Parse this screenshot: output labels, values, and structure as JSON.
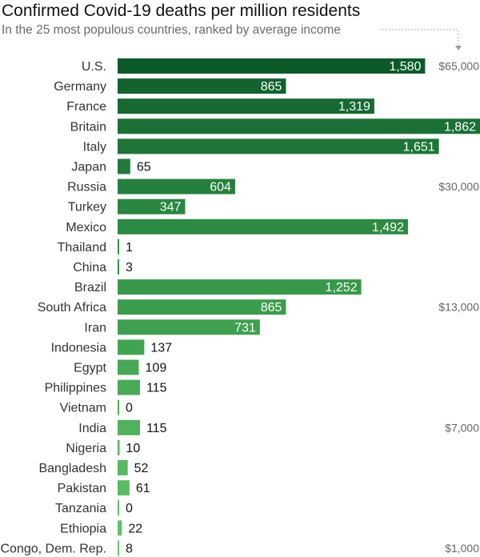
{
  "chart_data": {
    "type": "bar",
    "orientation": "horizontal",
    "title": "Confirmed Covid-19 deaths per million residents",
    "subtitle": "In the 25 most populous countries, ranked by average income",
    "xlim": [
      0,
      1862
    ],
    "grid": false,
    "categories": [
      "U.S.",
      "Germany",
      "France",
      "Britain",
      "Italy",
      "Japan",
      "Russia",
      "Turkey",
      "Mexico",
      "Thailand",
      "China",
      "Brazil",
      "South Africa",
      "Iran",
      "Indonesia",
      "Egypt",
      "Philippines",
      "Vietnam",
      "India",
      "Nigeria",
      "Bangladesh",
      "Pakistan",
      "Tanzania",
      "Ethiopia",
      "Congo, Dem. Rep."
    ],
    "values": [
      1580,
      865,
      1319,
      1862,
      1651,
      65,
      604,
      347,
      1492,
      1,
      3,
      1252,
      865,
      731,
      137,
      109,
      115,
      0,
      115,
      10,
      52,
      61,
      0,
      22,
      8
    ],
    "value_labels": [
      "1,580",
      "865",
      "1,319",
      "1,862",
      "1,651",
      "65",
      "604",
      "347",
      "1,492",
      "1",
      "3",
      "1,252",
      "865",
      "731",
      "137",
      "109",
      "115",
      "0",
      "115",
      "10",
      "52",
      "61",
      "0",
      "22",
      "8"
    ],
    "bar_colors": [
      "#0c5a2a",
      "#13622f",
      "#176931",
      "#1c6f35",
      "#1f7437",
      "#227a3a",
      "#26803d",
      "#2a8540",
      "#2d8a42",
      "#318f45",
      "#349348",
      "#38984a",
      "#3b9c4d",
      "#3fa04f",
      "#42a452",
      "#46a854",
      "#49ab57",
      "#4daf59",
      "#50b25c",
      "#54b55e",
      "#57b861",
      "#5bbb63",
      "#5ebe66",
      "#62c168",
      "#65c46b"
    ],
    "income_annotations": [
      {
        "row": 0,
        "label": "$65,000"
      },
      {
        "row": 6,
        "label": "$30,000"
      },
      {
        "row": 12,
        "label": "$13,000"
      },
      {
        "row": 18,
        "label": "$7,000"
      },
      {
        "row": 24,
        "label": "$1,000"
      }
    ]
  }
}
